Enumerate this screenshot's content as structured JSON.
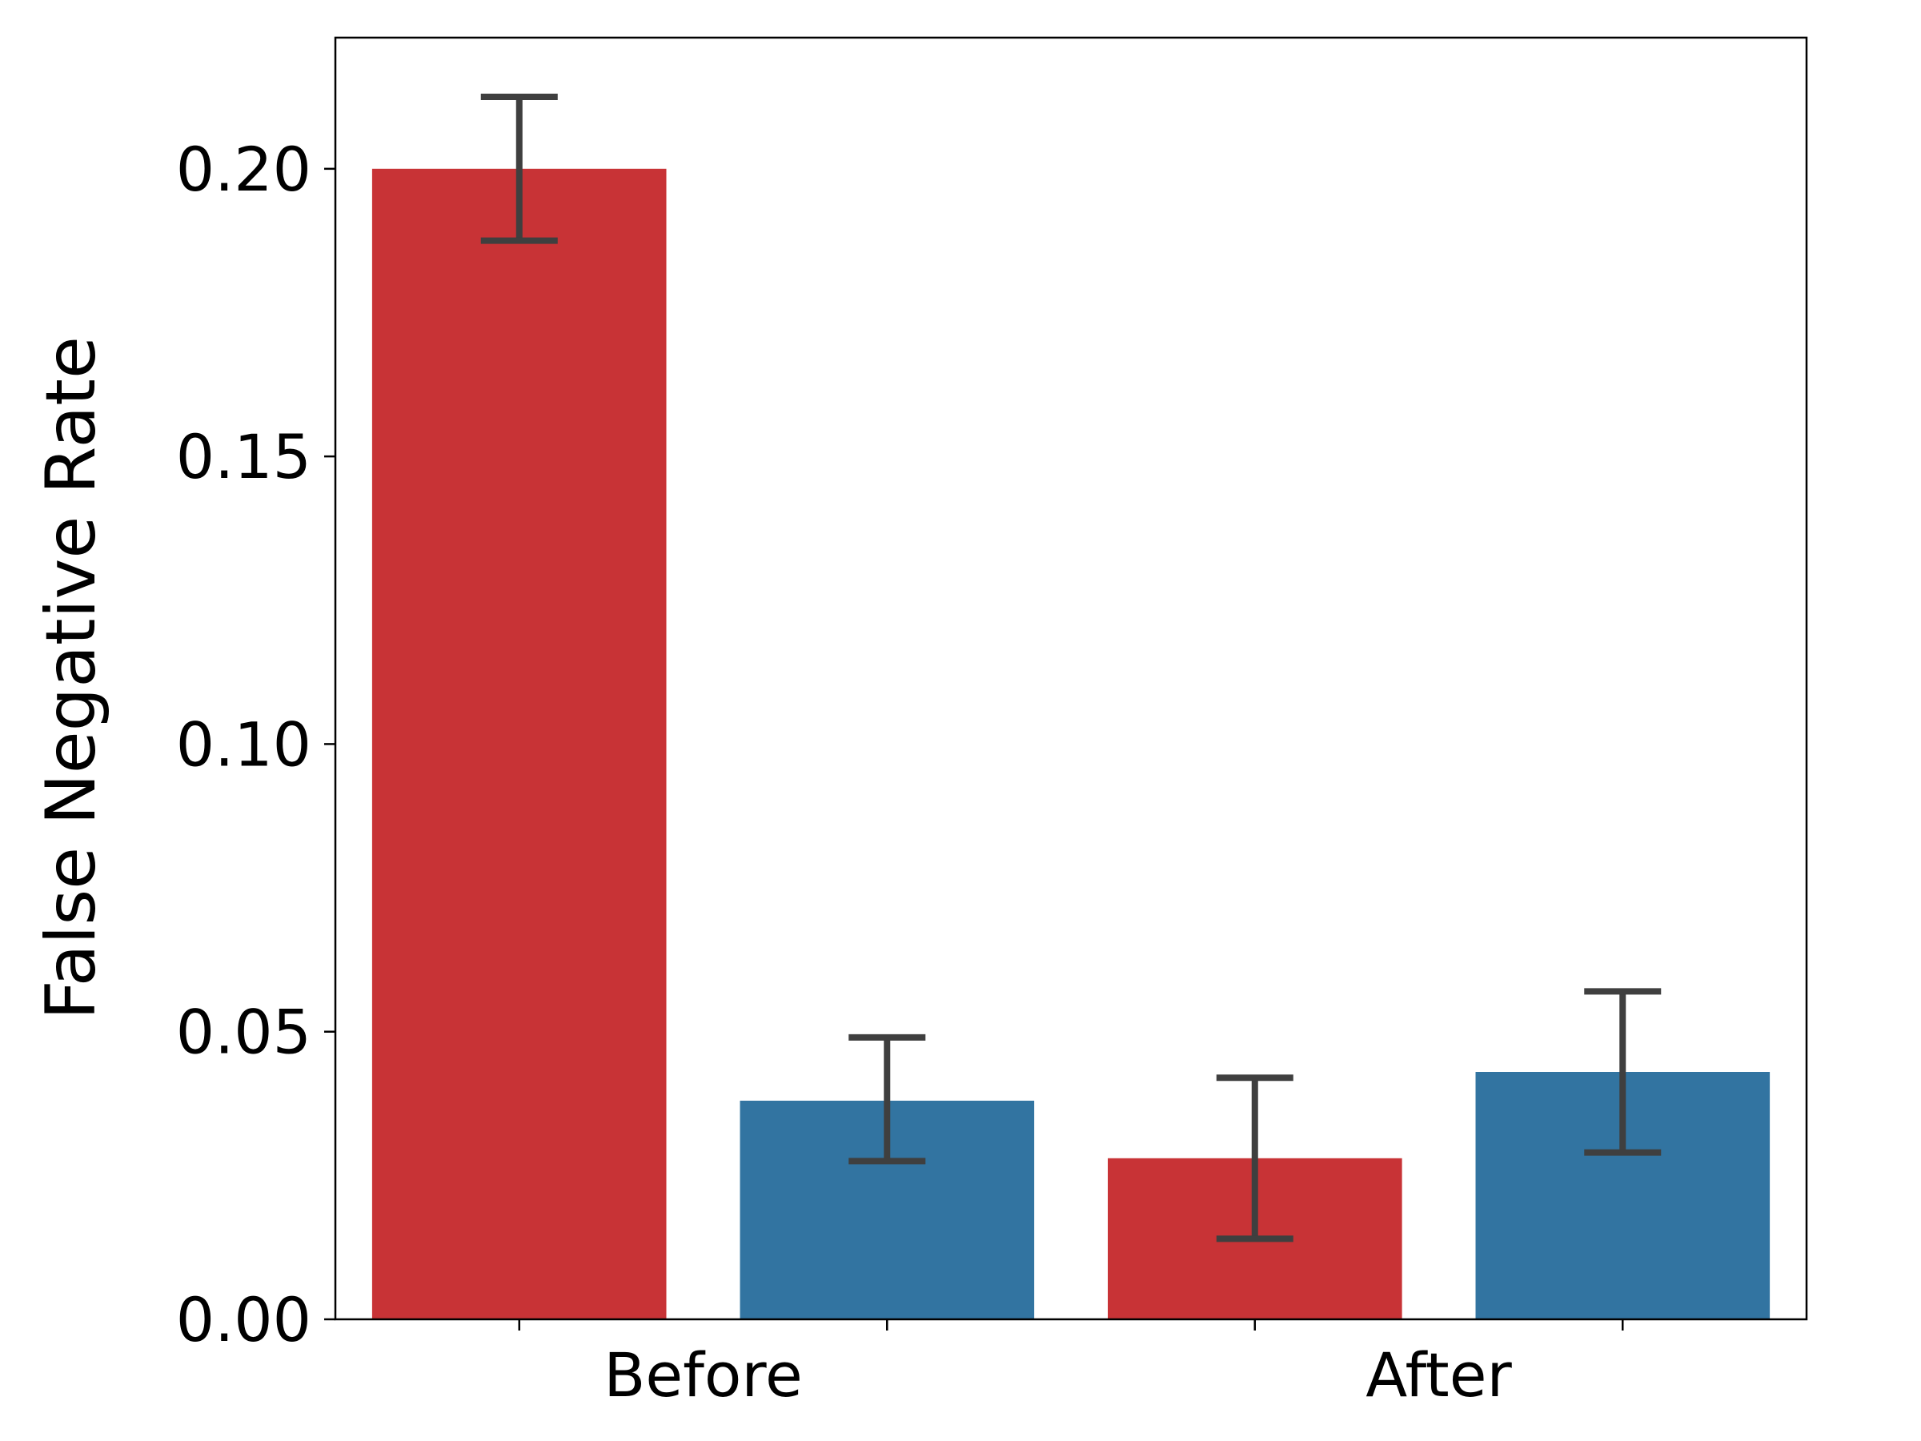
{
  "chart_data": {
    "type": "bar",
    "title": "",
    "xlabel": "",
    "ylabel": "False Negative Rate",
    "ylim": [
      0,
      0.2228
    ],
    "yticks": [
      "0.00",
      "0.05",
      "0.10",
      "0.15",
      "0.20"
    ],
    "group_labels": [
      "Before",
      "After"
    ],
    "grid": false,
    "legend": null,
    "bars": [
      {
        "group": "Before",
        "color": "#c83336",
        "value": 0.2,
        "err_low": 0.1875,
        "err_high": 0.2125
      },
      {
        "group": "Before",
        "color": "#3274a1",
        "value": 0.038,
        "err_low": 0.0275,
        "err_high": 0.049
      },
      {
        "group": "After",
        "color": "#c83336",
        "value": 0.028,
        "err_low": 0.014,
        "err_high": 0.042
      },
      {
        "group": "After",
        "color": "#3274a1",
        "value": 0.043,
        "err_low": 0.029,
        "err_high": 0.057
      }
    ],
    "colors": {
      "red": "#c83336",
      "blue": "#3274a1",
      "errorbar": "#3f3f3f"
    }
  }
}
